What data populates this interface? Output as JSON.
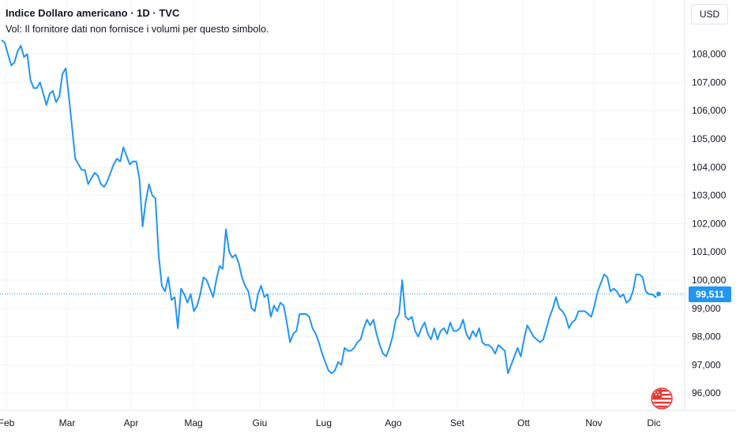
{
  "header": {
    "title": "Indice Dollaro americano · 1D · TVC",
    "volume_note": "Vol: Il fornitore dati non fornisce i volumi per questo simbolo."
  },
  "currency": "USD",
  "last_price_label": "99,511",
  "colors": {
    "line": "#2196f3",
    "grid": "#f0f3fa",
    "axis_text": "#131722"
  },
  "icons": {
    "flag": "us-flag-icon"
  },
  "chart_data": {
    "type": "line",
    "title": "Indice Dollaro americano · 1D · TVC",
    "xlabel": "",
    "ylabel": "",
    "ylim": [
      95.6,
      108.9
    ],
    "grid": true,
    "y_ticks": [
      "108,000",
      "107,000",
      "106,000",
      "105,000",
      "104,000",
      "103,000",
      "102,000",
      "101,000",
      "100,000",
      "99,000",
      "98,000",
      "97,000",
      "96,000"
    ],
    "x_ticks": [
      "Feb",
      "Mar",
      "Apr",
      "Mag",
      "Giu",
      "Lug",
      "Ago",
      "Set",
      "Ott",
      "Nov",
      "Dic"
    ],
    "last_value": 99.511,
    "series": [
      {
        "values": [
          108.5,
          108.4,
          108.0,
          107.6,
          107.7,
          108.1,
          108.3,
          107.9,
          108.0,
          107.1,
          106.8,
          106.8,
          107.0,
          106.6,
          106.2,
          106.6,
          106.7,
          106.3,
          106.5,
          107.3,
          107.5,
          106.5,
          105.4,
          104.3,
          104.1,
          103.9,
          103.9,
          103.4,
          103.6,
          103.8,
          103.7,
          103.4,
          103.3,
          103.5,
          103.8,
          104.1,
          104.3,
          104.2,
          104.7,
          104.4,
          104.1,
          104.2,
          104.2,
          103.6,
          101.9,
          102.8,
          103.4,
          103.0,
          102.9,
          100.9,
          99.8,
          99.6,
          100.1,
          99.3,
          99.4,
          98.3,
          99.7,
          99.5,
          99.2,
          99.5,
          98.9,
          99.1,
          99.5,
          100.1,
          100.0,
          99.7,
          99.4,
          100.0,
          100.5,
          100.4,
          101.8,
          101.0,
          100.8,
          100.9,
          100.6,
          100.1,
          99.8,
          99.6,
          99.0,
          98.9,
          99.5,
          99.8,
          99.4,
          99.5,
          98.7,
          99.1,
          98.9,
          99.2,
          99.1,
          98.5,
          97.8,
          98.1,
          98.2,
          98.8,
          98.8,
          98.8,
          98.7,
          98.3,
          98.1,
          97.8,
          97.4,
          97.1,
          96.8,
          96.7,
          96.8,
          97.1,
          97.0,
          97.6,
          97.5,
          97.5,
          97.6,
          97.8,
          97.9,
          98.3,
          98.6,
          98.4,
          98.6,
          98.1,
          97.7,
          97.4,
          97.3,
          97.6,
          98.0,
          98.6,
          98.8,
          100.0,
          98.7,
          98.6,
          98.7,
          98.2,
          98.0,
          98.3,
          98.5,
          98.1,
          97.9,
          98.3,
          97.9,
          98.2,
          98.3,
          98.1,
          98.5,
          98.2,
          98.2,
          98.3,
          98.6,
          98.1,
          97.9,
          98.2,
          98.0,
          98.3,
          97.8,
          97.7,
          97.7,
          97.6,
          97.4,
          97.7,
          97.6,
          97.5,
          96.7,
          97.0,
          97.3,
          97.6,
          97.3,
          97.9,
          98.4,
          98.2,
          98.0,
          97.9,
          97.8,
          97.9,
          98.3,
          98.7,
          99.0,
          99.4,
          99.0,
          98.9,
          98.7,
          98.3,
          98.5,
          98.6,
          98.9,
          98.9,
          98.9,
          98.8,
          98.7,
          99.1,
          99.6,
          99.9,
          100.2,
          100.1,
          99.6,
          99.7,
          99.6,
          99.4,
          99.5,
          99.2,
          99.3,
          99.6,
          100.2,
          100.2,
          100.1,
          99.6,
          99.5,
          99.5,
          99.4,
          99.5
        ]
      }
    ]
  }
}
